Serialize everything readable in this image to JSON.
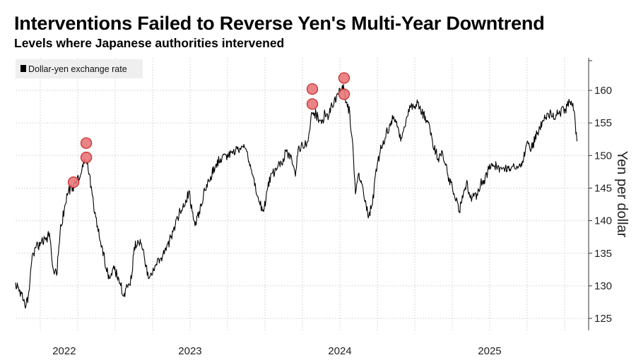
{
  "chart_data": {
    "type": "line",
    "title": "Interventions Failed to Reverse Yen's Multi-Year Downtrend",
    "subtitle": "Levels where Japanese authorities intervened",
    "ylabel": "Yen per dollar",
    "xlabel": "",
    "ylim": [
      123,
      165
    ],
    "xlim": [
      2021.835,
      2025.67
    ],
    "yticks": [
      125,
      130,
      135,
      140,
      145,
      150,
      155,
      160
    ],
    "xticks": [
      {
        "x": 2022.16,
        "label": "2022"
      },
      {
        "x": 2023.0,
        "label": "2023"
      },
      {
        "x": 2024.0,
        "label": "2024"
      },
      {
        "x": 2025.0,
        "label": "2025"
      }
    ],
    "xgrid": [
      2022.0,
      2022.25,
      2022.5,
      2022.75,
      2023.0,
      2023.25,
      2023.5,
      2023.75,
      2024.0,
      2024.25,
      2024.5,
      2024.75,
      2025.0,
      2025.25,
      2025.5
    ],
    "grid": true,
    "legend": {
      "placement": "top-left",
      "entries": [
        "Dollar-yen exchange rate"
      ]
    },
    "colors": {
      "line": "#000000",
      "marker_fill": "#e8777a",
      "marker_stroke": "#c9302c",
      "grid": "#d8d8d8"
    },
    "series": [
      {
        "name": "Dollar-yen exchange rate",
        "points": [
          [
            2021.835,
            130.5
          ],
          [
            2021.863,
            129.4
          ],
          [
            2021.896,
            127.1
          ],
          [
            2021.92,
            128.4
          ],
          [
            2021.943,
            133.8
          ],
          [
            2021.967,
            135.9
          ],
          [
            2022.005,
            136.5
          ],
          [
            2022.038,
            137.0
          ],
          [
            2022.061,
            138.1
          ],
          [
            2022.085,
            132.7
          ],
          [
            2022.109,
            131.6
          ],
          [
            2022.132,
            138.1
          ],
          [
            2022.165,
            142.4
          ],
          [
            2022.189,
            144.6
          ],
          [
            2022.217,
            145.2
          ],
          [
            2022.241,
            145.7
          ],
          [
            2022.274,
            147.3
          ],
          [
            2022.297,
            149.5
          ],
          [
            2022.316,
            148.9
          ],
          [
            2022.344,
            144.6
          ],
          [
            2022.359,
            141.4
          ],
          [
            2022.382,
            139.2
          ],
          [
            2022.415,
            135.9
          ],
          [
            2022.439,
            132.7
          ],
          [
            2022.462,
            131.1
          ],
          [
            2022.486,
            132.7
          ],
          [
            2022.524,
            131.1
          ],
          [
            2022.557,
            128.4
          ],
          [
            2022.58,
            130.0
          ],
          [
            2022.609,
            131.1
          ],
          [
            2022.627,
            135.9
          ],
          [
            2022.651,
            137.0
          ],
          [
            2022.675,
            136.5
          ],
          [
            2022.698,
            133.8
          ],
          [
            2022.722,
            131.1
          ],
          [
            2022.745,
            131.6
          ],
          [
            2022.778,
            133.2
          ],
          [
            2022.807,
            134.3
          ],
          [
            2022.84,
            135.4
          ],
          [
            2022.863,
            137.0
          ],
          [
            2022.901,
            139.2
          ],
          [
            2022.934,
            141.4
          ],
          [
            2022.967,
            142.4
          ],
          [
            2022.995,
            144.6
          ],
          [
            2023.014,
            141.4
          ],
          [
            2023.033,
            139.2
          ],
          [
            2023.061,
            141.4
          ],
          [
            2023.099,
            144.6
          ],
          [
            2023.137,
            146.8
          ],
          [
            2023.17,
            148.4
          ],
          [
            2023.203,
            149.5
          ],
          [
            2023.241,
            150.0
          ],
          [
            2023.288,
            150.6
          ],
          [
            2023.335,
            151.1
          ],
          [
            2023.359,
            151.7
          ],
          [
            2023.382,
            150.6
          ],
          [
            2023.406,
            147.9
          ],
          [
            2023.439,
            144.6
          ],
          [
            2023.467,
            142.4
          ],
          [
            2023.491,
            141.4
          ],
          [
            2023.514,
            144.6
          ],
          [
            2023.547,
            147.3
          ],
          [
            2023.58,
            147.9
          ],
          [
            2023.609,
            148.9
          ],
          [
            2023.642,
            150.6
          ],
          [
            2023.675,
            150.0
          ],
          [
            2023.703,
            146.8
          ],
          [
            2023.722,
            151.1
          ],
          [
            2023.75,
            151.7
          ],
          [
            2023.788,
            152.2
          ],
          [
            2023.807,
            156.0
          ],
          [
            2023.83,
            156.5
          ],
          [
            2023.854,
            156.0
          ],
          [
            2023.877,
            154.9
          ],
          [
            2023.901,
            156.5
          ],
          [
            2023.925,
            156.0
          ],
          [
            2023.948,
            157.6
          ],
          [
            2023.976,
            158.7
          ],
          [
            2024.0,
            160.3
          ],
          [
            2024.024,
            160.9
          ],
          [
            2024.042,
            158.2
          ],
          [
            2024.066,
            156.5
          ],
          [
            2024.09,
            150.0
          ],
          [
            2024.104,
            144.1
          ],
          [
            2024.127,
            147.3
          ],
          [
            2024.146,
            145.7
          ],
          [
            2024.175,
            142.4
          ],
          [
            2024.193,
            140.8
          ],
          [
            2024.217,
            142.4
          ],
          [
            2024.241,
            147.9
          ],
          [
            2024.269,
            150.6
          ],
          [
            2024.302,
            152.7
          ],
          [
            2024.335,
            154.9
          ],
          [
            2024.358,
            156.0
          ],
          [
            2024.382,
            154.4
          ],
          [
            2024.406,
            152.2
          ],
          [
            2024.429,
            154.4
          ],
          [
            2024.458,
            157.1
          ],
          [
            2024.491,
            157.6
          ],
          [
            2024.524,
            158.2
          ],
          [
            2024.547,
            156.5
          ],
          [
            2024.585,
            155.4
          ],
          [
            2024.618,
            152.2
          ],
          [
            2024.656,
            149.5
          ],
          [
            2024.684,
            150.6
          ],
          [
            2024.717,
            147.3
          ],
          [
            2024.75,
            145.2
          ],
          [
            2024.774,
            143.0
          ],
          [
            2024.797,
            141.4
          ],
          [
            2024.821,
            143.5
          ],
          [
            2024.844,
            145.7
          ],
          [
            2024.882,
            143.5
          ],
          [
            2024.915,
            144.1
          ],
          [
            2024.939,
            145.7
          ],
          [
            2024.962,
            146.2
          ],
          [
            2024.995,
            147.9
          ],
          [
            2025.033,
            148.4
          ],
          [
            2025.08,
            147.9
          ],
          [
            2025.127,
            148.4
          ],
          [
            2025.175,
            147.9
          ],
          [
            2025.222,
            148.9
          ],
          [
            2025.245,
            151.7
          ],
          [
            2025.278,
            151.1
          ],
          [
            2025.316,
            153.3
          ],
          [
            2025.354,
            155.4
          ],
          [
            2025.387,
            156.5
          ],
          [
            2025.42,
            156.0
          ],
          [
            2025.458,
            156.5
          ],
          [
            2025.505,
            157.1
          ],
          [
            2025.533,
            158.2
          ],
          [
            2025.552,
            157.6
          ],
          [
            2025.566,
            156.5
          ],
          [
            2025.575,
            153.3
          ],
          [
            2025.585,
            152.2
          ]
        ]
      }
    ],
    "interventions": [
      [
        2022.222,
        145.9
      ],
      [
        2022.307,
        151.9
      ],
      [
        2022.307,
        149.7
      ],
      [
        2023.816,
        160.2
      ],
      [
        2023.816,
        157.9
      ],
      [
        2024.028,
        161.9
      ],
      [
        2024.028,
        159.4
      ]
    ]
  }
}
